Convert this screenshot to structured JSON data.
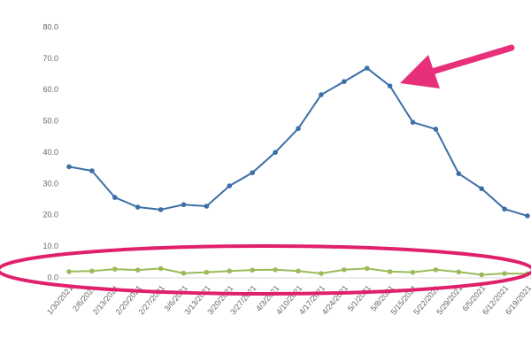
{
  "chart_data": {
    "type": "line",
    "categories": [
      "1/30/2021",
      "2/6/2021",
      "2/13/2021",
      "2/20/2021",
      "2/27/2021",
      "3/6/2021",
      "3/13/2021",
      "3/20/2021",
      "3/27/2021",
      "4/3/2021",
      "4/10/2021",
      "4/17/2021",
      "4/24/2021",
      "5/1/2021",
      "5/8/2021",
      "5/15/2021",
      "5/22/2021",
      "5/29/2021",
      "6/5/2021",
      "6/12/2021",
      "6/19/2021"
    ],
    "series": [
      {
        "color": "#3b6fa6",
        "values": [
          35.5,
          34.2,
          25.7,
          22.6,
          21.8,
          23.4,
          22.9,
          29.4,
          33.6,
          40.1,
          47.7,
          58.5,
          62.7,
          67.0,
          61.3,
          49.7,
          47.5,
          33.3,
          28.5,
          22.0,
          19.8
        ]
      },
      {
        "color": "#9bbb59",
        "values": [
          2.0,
          2.2,
          2.8,
          2.5,
          3.0,
          1.5,
          1.8,
          2.2,
          2.5,
          2.6,
          2.2,
          1.4,
          2.6,
          3.0,
          2.0,
          1.8,
          2.6,
          1.9,
          1.0,
          1.4,
          1.3
        ]
      }
    ],
    "ylim": [
      0,
      80
    ],
    "yticks": [
      {
        "value": 0,
        "label": "0.0"
      },
      {
        "value": 10,
        "label": "10.0"
      },
      {
        "value": 20,
        "label": "20.0"
      },
      {
        "value": 30,
        "label": "30.0"
      },
      {
        "value": 40,
        "label": "40.0"
      },
      {
        "value": 50,
        "label": "50.0"
      },
      {
        "value": 60,
        "label": "60.0"
      },
      {
        "value": 70,
        "label": "70.0"
      },
      {
        "value": 80,
        "label": "80.0"
      }
    ],
    "grid": false
  }
}
